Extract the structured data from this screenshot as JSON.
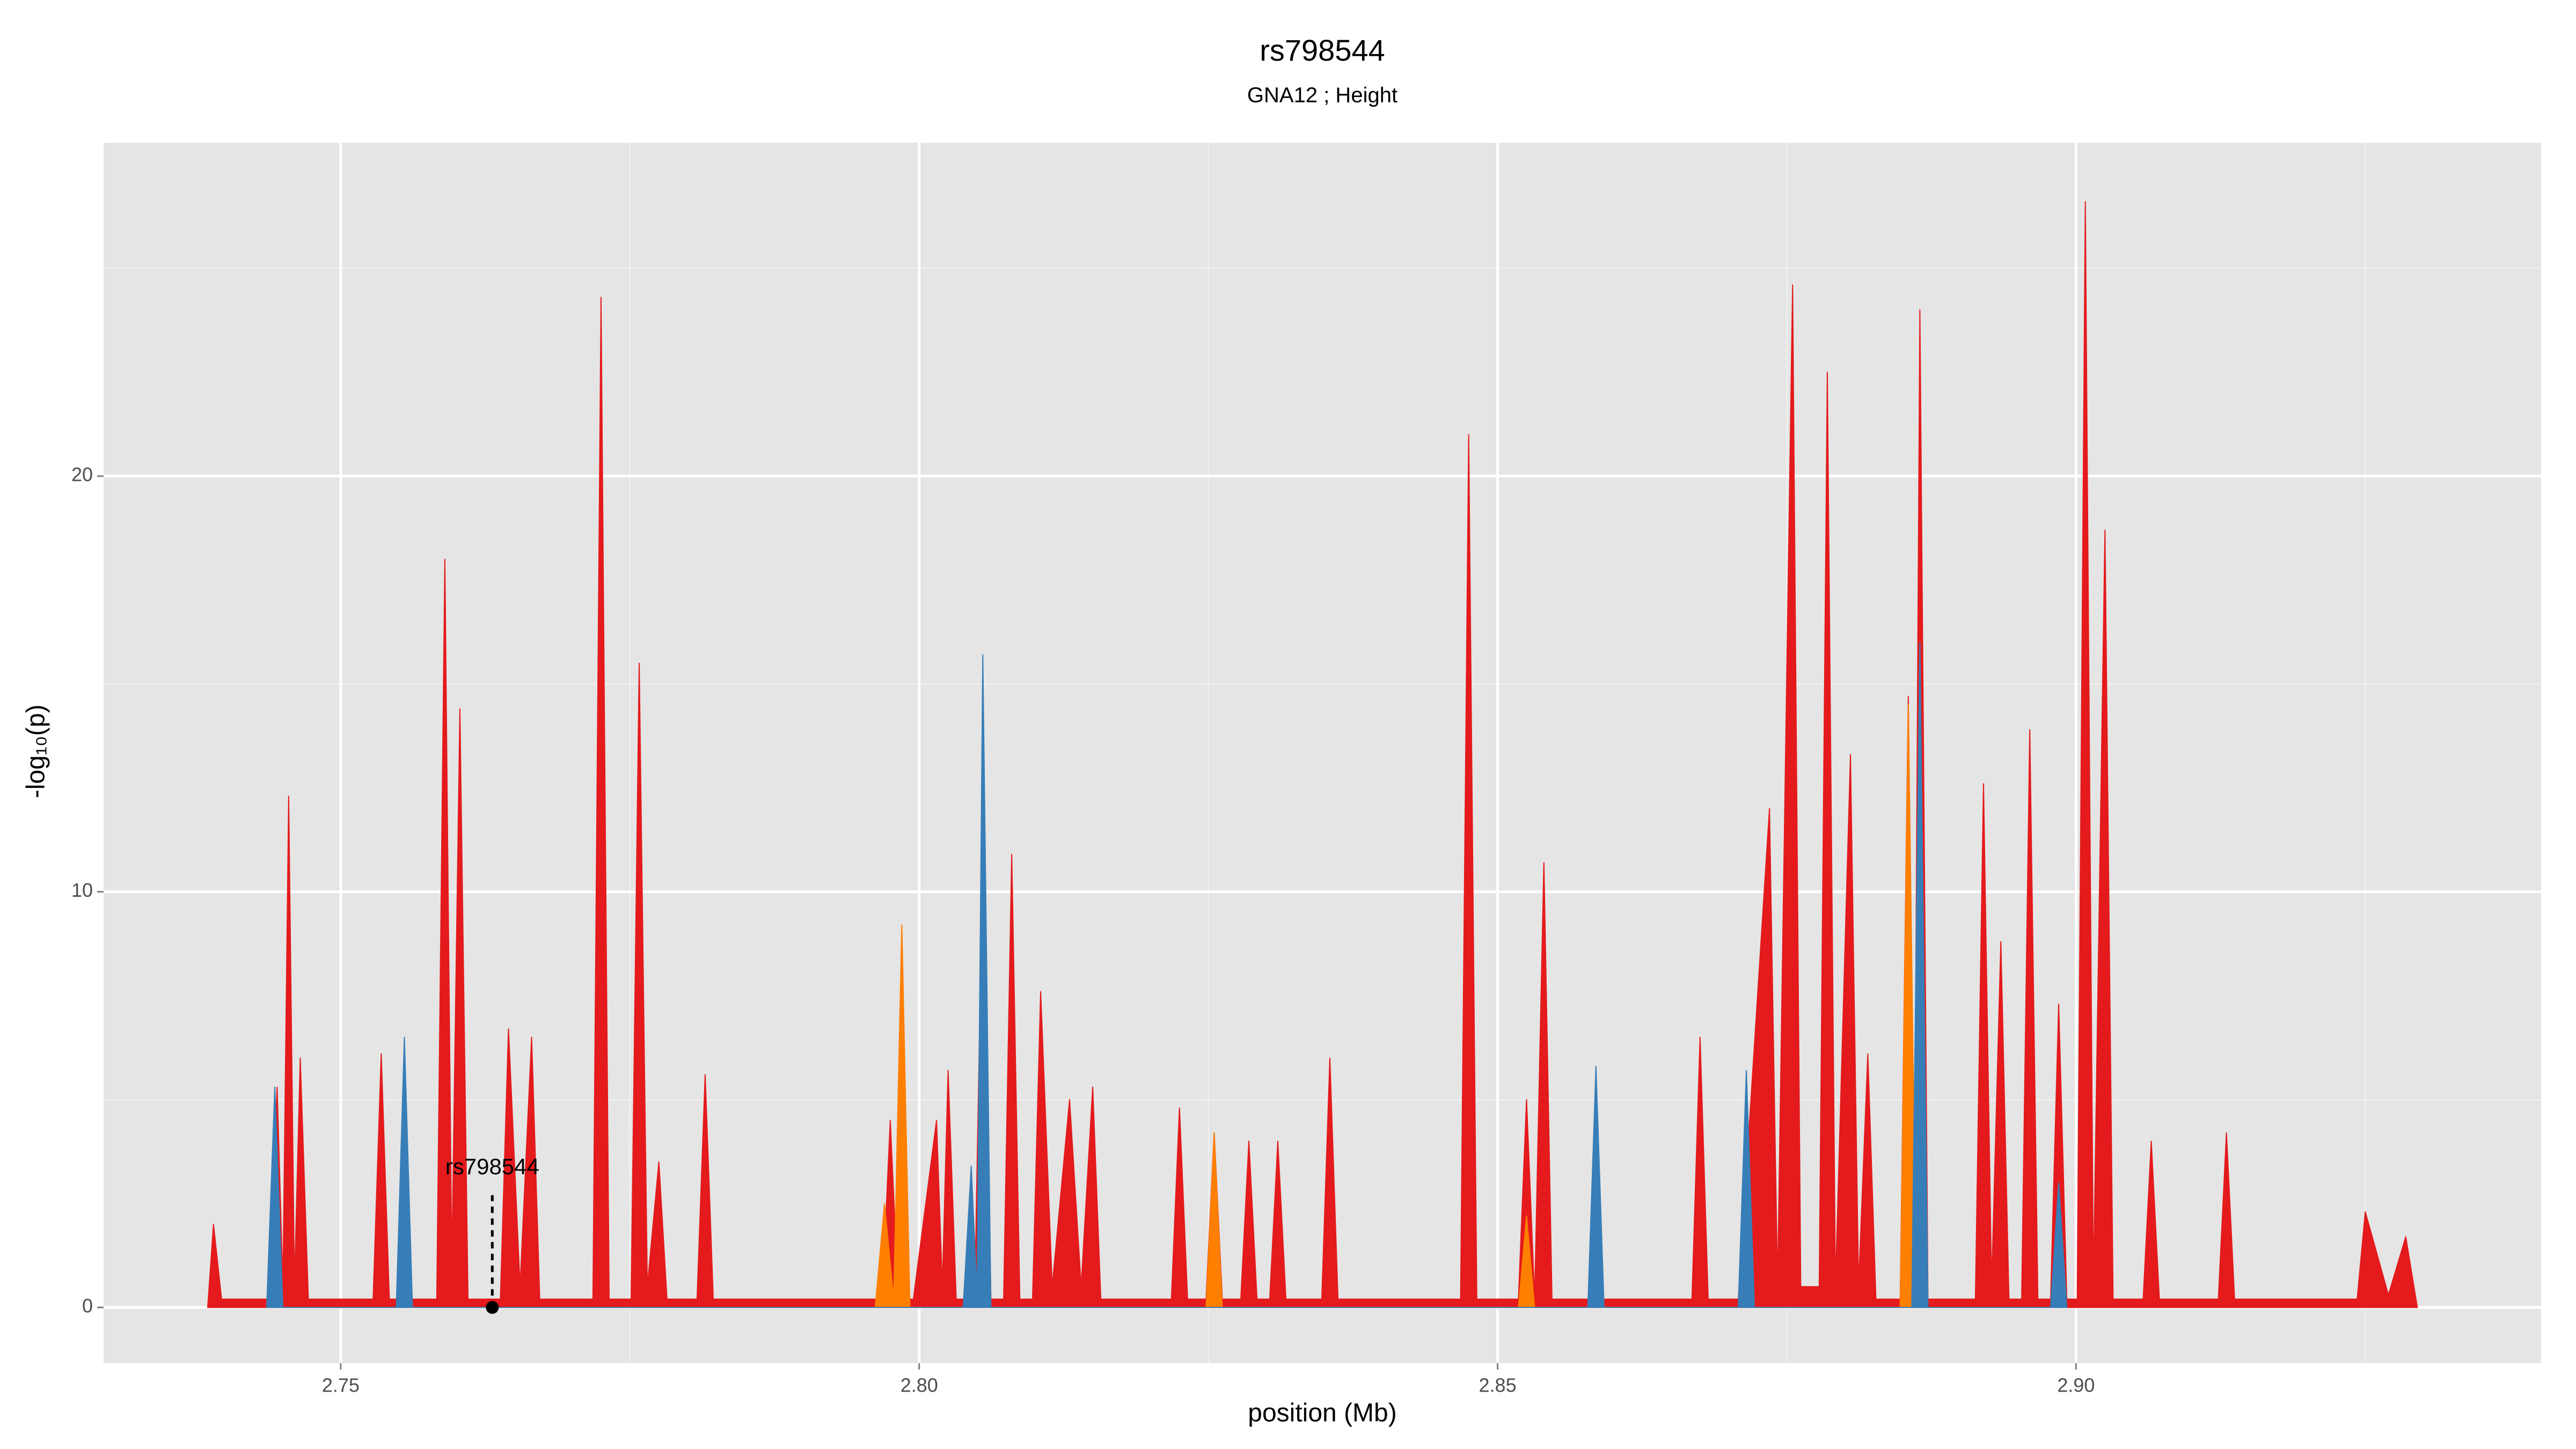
{
  "chart_data": {
    "type": "area",
    "title": "rs798544",
    "subtitle": "GNA12 ; Height",
    "xlabel": "position (Mb)",
    "ylabel": "-log₁₀(p)",
    "xlim": [
      2.7295,
      2.9402
    ],
    "ylim": [
      -1.34,
      28.02
    ],
    "xticks": [
      2.75,
      {
        "value": 2.8,
        "label": "2.80"
      },
      2.85,
      {
        "value": 2.9,
        "label": "2.90"
      }
    ],
    "yticks": [
      0,
      10,
      20
    ],
    "grid": true,
    "annotation": {
      "text": "rs798544",
      "x": 2.7631,
      "y": 0,
      "line_to": 2.7
    },
    "series": [
      {
        "color": "#e41a1c",
        "x": [
          2.7385,
          2.739,
          2.7397,
          2.7438,
          2.7445,
          2.745,
          2.7455,
          2.746,
          2.7465,
          2.7472,
          2.7528,
          2.7535,
          2.7542,
          2.7583,
          2.759,
          2.7596,
          2.7603,
          2.761,
          2.7638,
          2.7645,
          2.7655,
          2.7665,
          2.7672,
          2.7718,
          2.7725,
          2.7732,
          2.7751,
          2.7758,
          2.7765,
          2.7775,
          2.7782,
          2.7808,
          2.7815,
          2.7822,
          2.7968,
          2.7975,
          2.7982,
          2.7995,
          2.8015,
          2.802,
          2.8025,
          2.8032,
          2.8048,
          2.8055,
          2.8062,
          2.8073,
          2.808,
          2.8087,
          2.8098,
          2.8105,
          2.8115,
          2.813,
          2.814,
          2.815,
          2.8157,
          2.8218,
          2.8225,
          2.8232,
          2.8248,
          2.8255,
          2.8262,
          2.8278,
          2.8285,
          2.8292,
          2.8303,
          2.831,
          2.8317,
          2.8348,
          2.8355,
          2.8362,
          2.8468,
          2.8475,
          2.8482,
          2.8518,
          2.8525,
          2.8532,
          2.854,
          2.8547,
          2.8668,
          2.8675,
          2.8682,
          2.8708,
          2.8735,
          2.8742,
          2.8755,
          2.8762,
          2.8778,
          2.8785,
          2.8792,
          2.8805,
          2.8812,
          2.882,
          2.8827,
          2.8848,
          2.8855,
          2.886,
          2.8865,
          2.8872,
          2.8913,
          2.892,
          2.8927,
          2.8935,
          2.8942,
          2.8953,
          2.896,
          2.8967,
          2.8978,
          2.8985,
          2.8992,
          2.9001,
          2.9008,
          2.9015,
          2.9025,
          2.9032,
          2.9058,
          2.9065,
          2.9072,
          2.9123,
          2.913,
          2.9137,
          2.9243,
          2.925,
          2.927,
          2.9285,
          2.9295
        ],
        "values": [
          0,
          2.0,
          0.2,
          0.2,
          5.3,
          0.5,
          12.3,
          0.5,
          6.0,
          0.2,
          0.2,
          6.1,
          0.2,
          0.2,
          18.0,
          1.0,
          14.4,
          0.2,
          0.2,
          6.7,
          0.5,
          6.5,
          0.2,
          0.2,
          24.3,
          0.2,
          0.2,
          15.5,
          0.5,
          3.5,
          0.2,
          0.2,
          5.6,
          0.2,
          0.2,
          4.5,
          0.2,
          0.2,
          4.5,
          0.5,
          5.7,
          0.2,
          0.2,
          11.0,
          0.2,
          0.2,
          10.9,
          0.2,
          0.2,
          7.6,
          0.5,
          5.0,
          0.5,
          5.3,
          0.2,
          0.2,
          4.8,
          0.2,
          0.2,
          4.2,
          0.2,
          0.2,
          4.0,
          0.2,
          0.2,
          4.0,
          0.2,
          0.2,
          6.0,
          0.2,
          0.2,
          21.0,
          0.2,
          0.2,
          5.0,
          0.2,
          10.7,
          0.2,
          0.2,
          6.5,
          0.2,
          0.2,
          12.0,
          0.5,
          24.6,
          0.5,
          0.5,
          22.5,
          0.5,
          13.3,
          0.5,
          6.1,
          0.2,
          0.2,
          14.7,
          1.0,
          24.0,
          0.2,
          0.2,
          12.6,
          0.5,
          8.8,
          0.2,
          0.2,
          13.9,
          0.2,
          0.2,
          7.3,
          0.2,
          0.2,
          26.6,
          0.5,
          18.7,
          0.2,
          0.2,
          4.0,
          0.2,
          0.2,
          4.2,
          0.2,
          0.2,
          2.3,
          0.3,
          1.7,
          0
        ]
      },
      {
        "color": "#ff7f00",
        "x": [
          2.7962,
          2.797,
          2.7978,
          2.7985,
          2.7992,
          2.8248,
          2.8255,
          2.8262,
          2.8518,
          2.8525,
          2.8532,
          2.8848,
          2.8855,
          2.8862
        ],
        "values": [
          0,
          2.5,
          0.2,
          9.2,
          0,
          0,
          4.2,
          0,
          0,
          2.2,
          0,
          0,
          14.5,
          0
        ]
      },
      {
        "color": "#377eb8",
        "x": [
          2.7436,
          2.7443,
          2.745,
          2.7548,
          2.7555,
          2.7562,
          2.8038,
          2.8045,
          2.805,
          2.8055,
          2.8062,
          2.8578,
          2.8585,
          2.8592,
          2.8708,
          2.8715,
          2.8722,
          2.8858,
          2.8865,
          2.8872,
          2.8978,
          2.8985,
          2.8992
        ],
        "values": [
          0,
          5.3,
          0,
          0,
          6.5,
          0,
          0,
          3.4,
          0.3,
          15.7,
          0,
          0,
          5.8,
          0,
          0,
          5.7,
          0,
          0,
          16.0,
          0,
          0,
          3.0,
          0
        ]
      }
    ]
  }
}
